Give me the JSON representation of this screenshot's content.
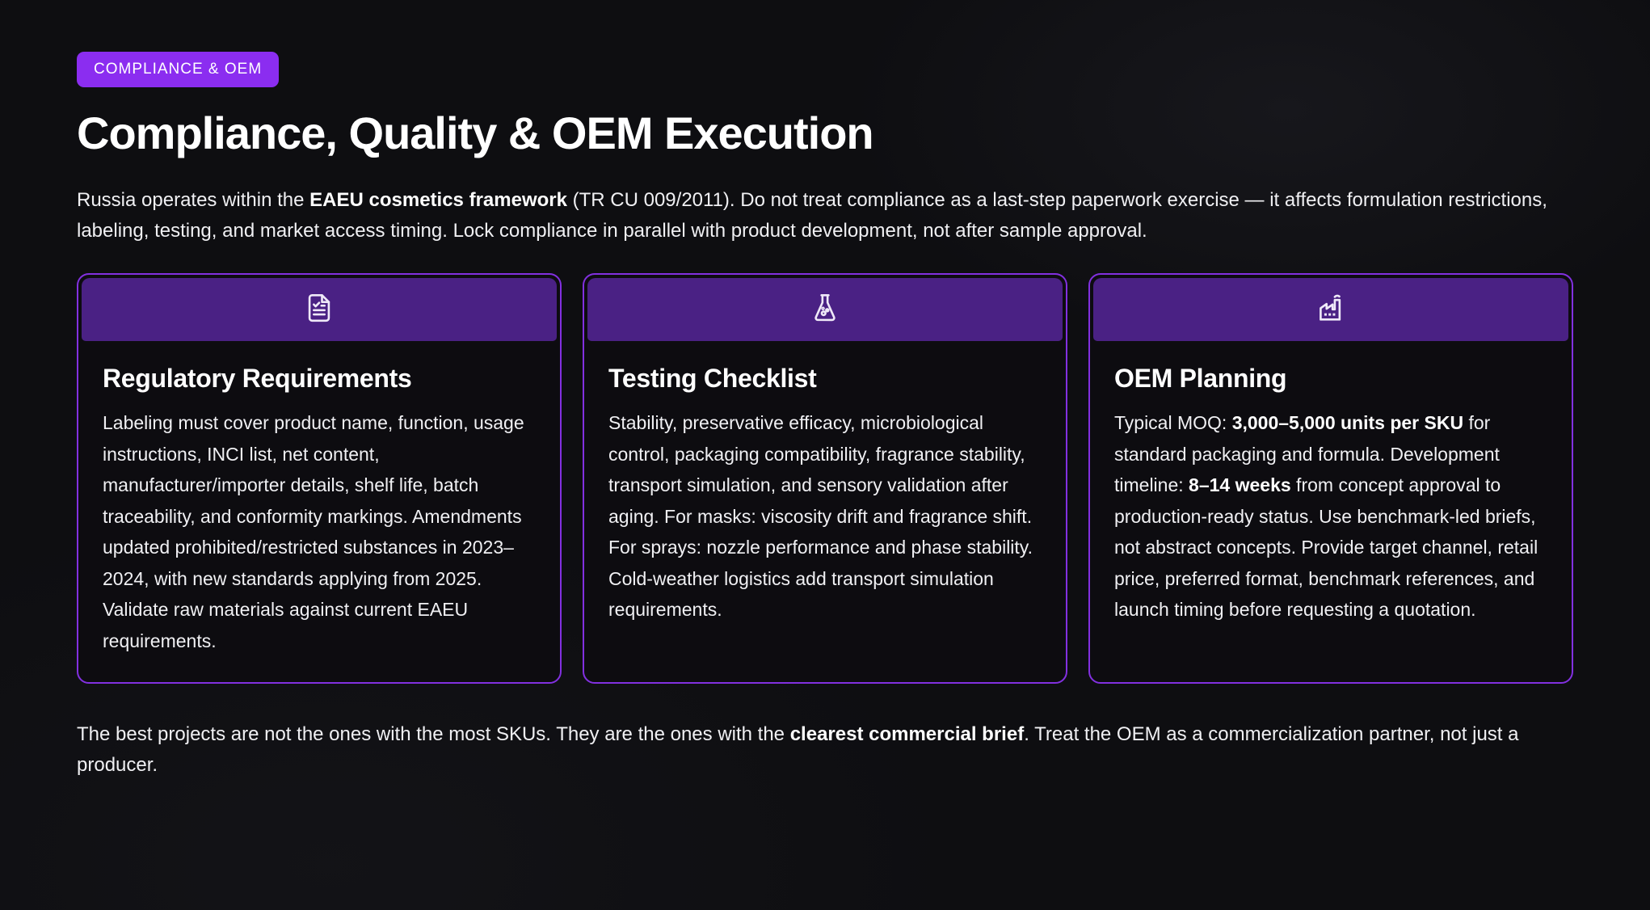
{
  "colors": {
    "accent": "#8b2df0",
    "card_border": "#8230e0",
    "card_header_bg": "#4a2184",
    "card_bg": "#0d0c10",
    "page_bg": "#0e0e11",
    "text_primary": "#ffffff",
    "text_body": "#f0f0f3"
  },
  "badge": {
    "label": "COMPLIANCE & OEM"
  },
  "header": {
    "title": "Compliance, Quality & OEM Execution"
  },
  "intro": {
    "segments": [
      {
        "text": "Russia operates within the ",
        "bold": false
      },
      {
        "text": "EAEU cosmetics framework",
        "bold": true
      },
      {
        "text": " (TR CU 009/2011). Do not treat compliance as a last-step paperwork exercise — it affects formulation restrictions, labeling, testing, and market access timing. Lock compliance in parallel with product development, not after sample approval.",
        "bold": false
      }
    ]
  },
  "cards": [
    {
      "icon": "document-check-icon",
      "title": "Regulatory Requirements",
      "body": [
        {
          "text": "Labeling must cover product name, function, usage instructions, INCI list, net content, manufacturer/importer details, shelf life, batch traceability, and conformity markings. Amendments updated prohibited/restricted substances in 2023–2024, with new standards applying from 2025. Validate raw materials against current EAEU requirements.",
          "bold": false
        }
      ]
    },
    {
      "icon": "flask-icon",
      "title": "Testing Checklist",
      "body": [
        {
          "text": "Stability, preservative efficacy, microbiological control, packaging compatibility, fragrance stability, transport simulation, and sensory validation after aging. For masks: viscosity drift and fragrance shift. For sprays: nozzle performance and phase stability. Cold-weather logistics add transport simulation requirements.",
          "bold": false
        }
      ]
    },
    {
      "icon": "factory-icon",
      "title": "OEM Planning",
      "body": [
        {
          "text": "Typical MOQ: ",
          "bold": false
        },
        {
          "text": "3,000–5,000 units per SKU",
          "bold": true
        },
        {
          "text": " for standard packaging and formula. Development timeline: ",
          "bold": false
        },
        {
          "text": "8–14 weeks",
          "bold": true
        },
        {
          "text": " from concept approval to production-ready status. Use benchmark-led briefs, not abstract concepts. Provide target channel, retail price, preferred format, benchmark references, and launch timing before requesting a quotation.",
          "bold": false
        }
      ]
    }
  ],
  "outro": {
    "segments": [
      {
        "text": "The best projects are not the ones with the most SKUs. They are the ones with the ",
        "bold": false
      },
      {
        "text": "clearest commercial brief",
        "bold": true
      },
      {
        "text": ". Treat the OEM as a commercialization partner, not just a producer.",
        "bold": false
      }
    ]
  }
}
